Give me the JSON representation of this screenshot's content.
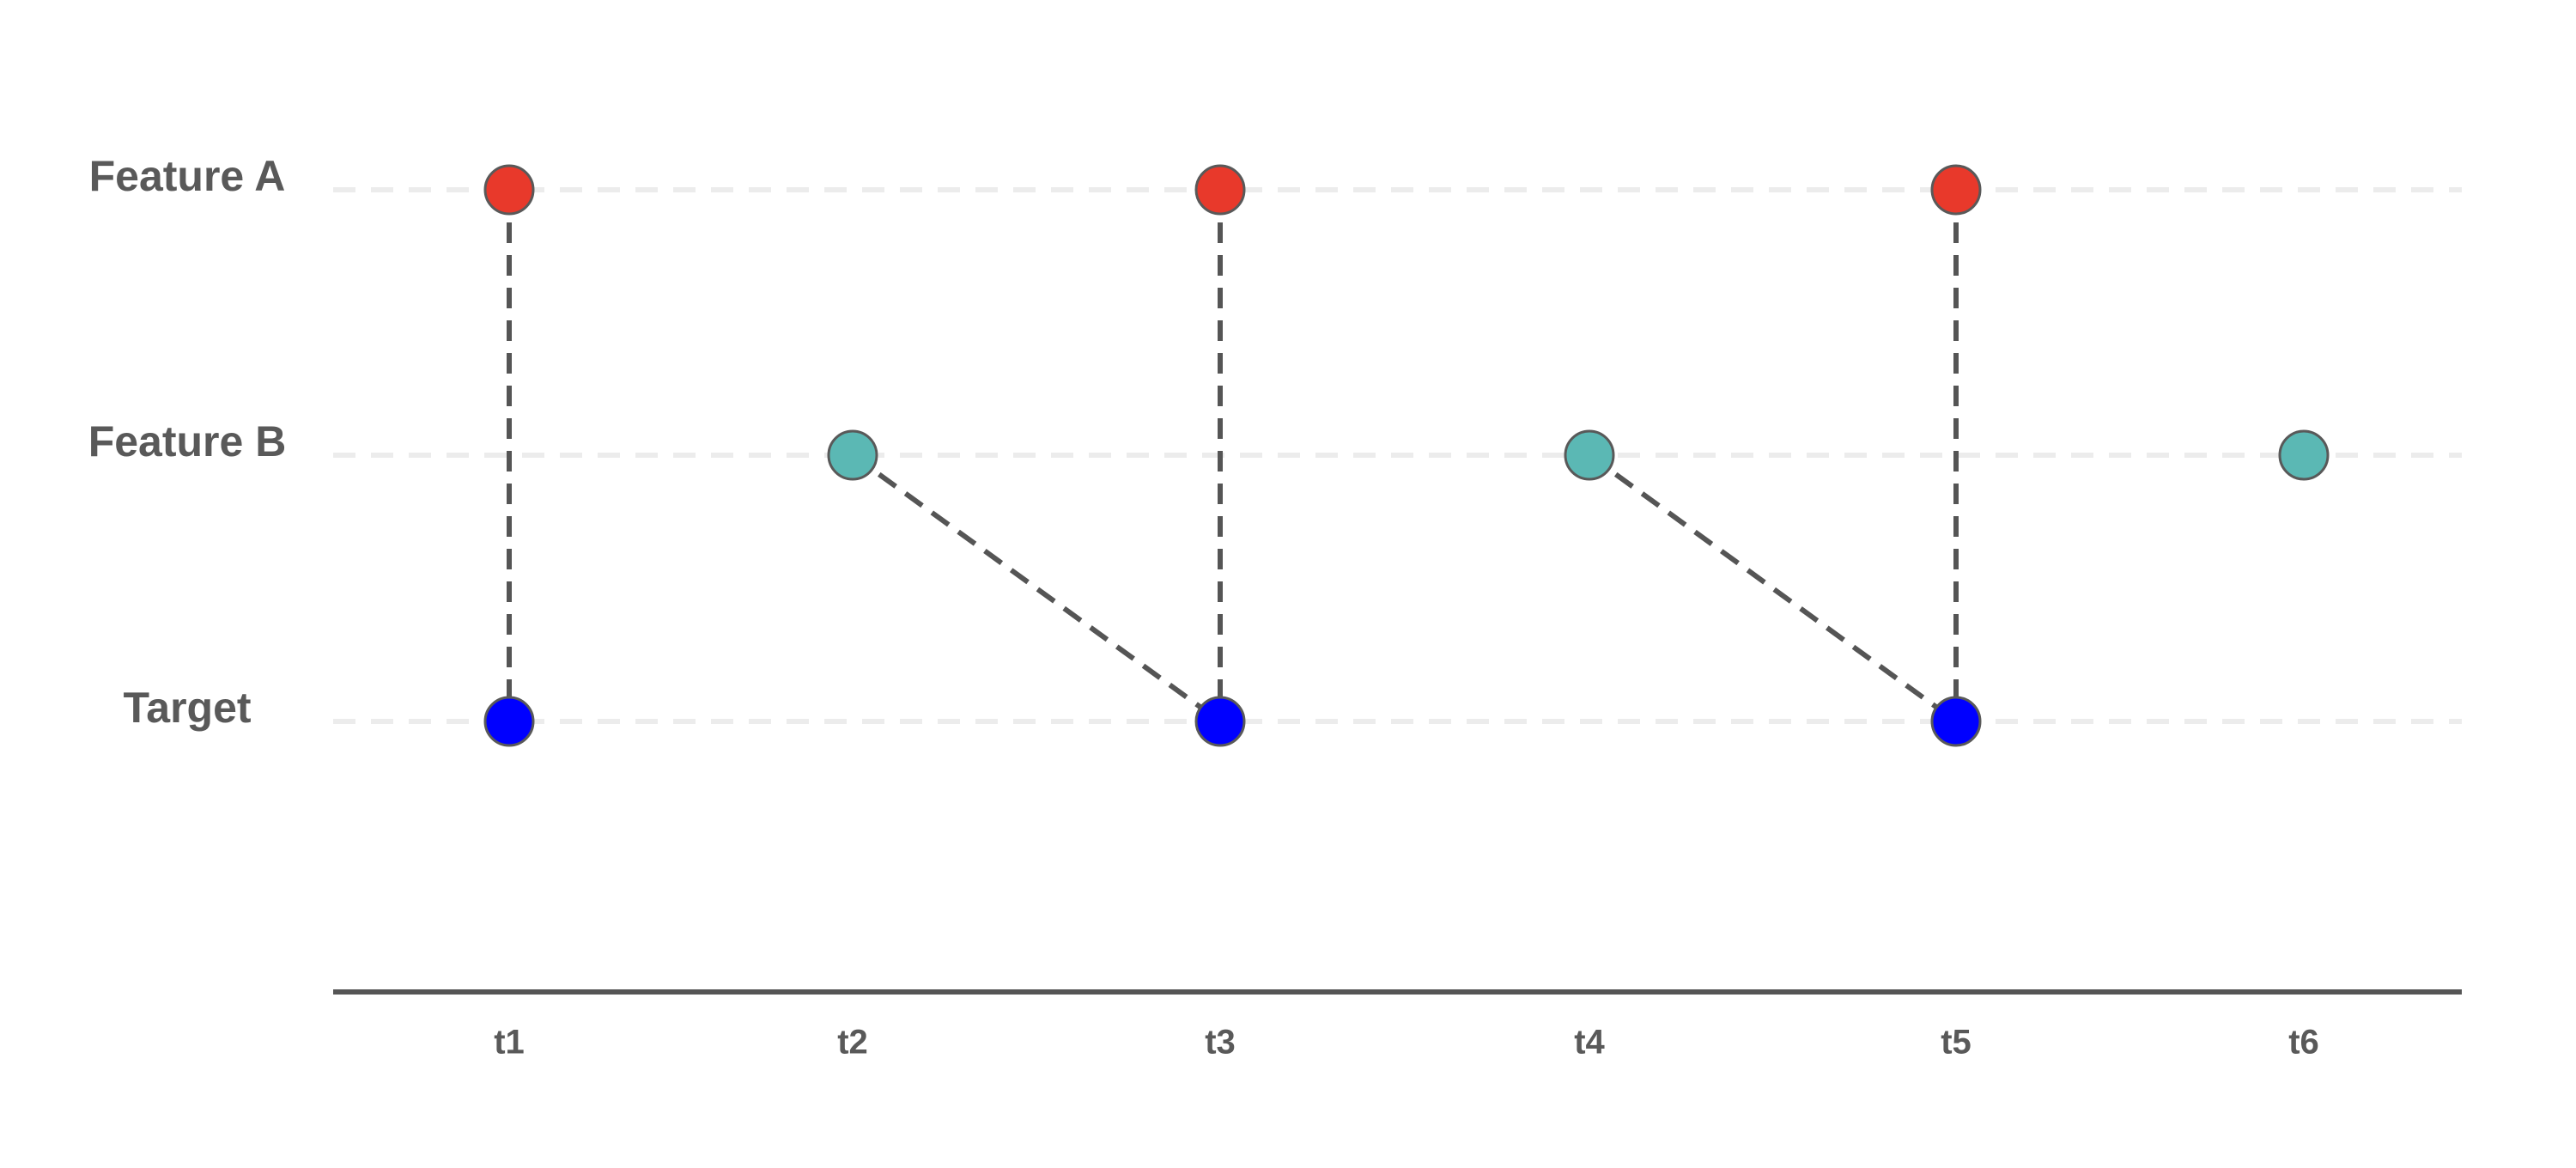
{
  "colors": {
    "text": "#595959",
    "gridline": "#ececec",
    "axis": "#555555",
    "connector": "#555555",
    "node_stroke": "#595959",
    "feature_a": "#e8392b",
    "feature_b": "#5bb8b4",
    "target": "#0000ff"
  },
  "rows": [
    {
      "id": "feature_a",
      "label": "Feature A",
      "color_key": "feature_a"
    },
    {
      "id": "feature_b",
      "label": "Feature B",
      "color_key": "feature_b"
    },
    {
      "id": "target",
      "label": "Target",
      "color_key": "target"
    }
  ],
  "time_steps": [
    "t1",
    "t2",
    "t3",
    "t4",
    "t5",
    "t6"
  ],
  "nodes": [
    {
      "row": "feature_a",
      "time": "t1"
    },
    {
      "row": "target",
      "time": "t1"
    },
    {
      "row": "feature_b",
      "time": "t2"
    },
    {
      "row": "feature_a",
      "time": "t3"
    },
    {
      "row": "target",
      "time": "t3"
    },
    {
      "row": "feature_b",
      "time": "t4"
    },
    {
      "row": "feature_a",
      "time": "t5"
    },
    {
      "row": "target",
      "time": "t5"
    },
    {
      "row": "feature_b",
      "time": "t6"
    }
  ],
  "edges": [
    {
      "from": {
        "row": "feature_a",
        "time": "t1"
      },
      "to": {
        "row": "target",
        "time": "t1"
      }
    },
    {
      "from": {
        "row": "feature_b",
        "time": "t2"
      },
      "to": {
        "row": "target",
        "time": "t3"
      }
    },
    {
      "from": {
        "row": "feature_a",
        "time": "t3"
      },
      "to": {
        "row": "target",
        "time": "t3"
      }
    },
    {
      "from": {
        "row": "feature_b",
        "time": "t4"
      },
      "to": {
        "row": "target",
        "time": "t5"
      }
    },
    {
      "from": {
        "row": "feature_a",
        "time": "t5"
      },
      "to": {
        "row": "target",
        "time": "t5"
      }
    }
  ]
}
